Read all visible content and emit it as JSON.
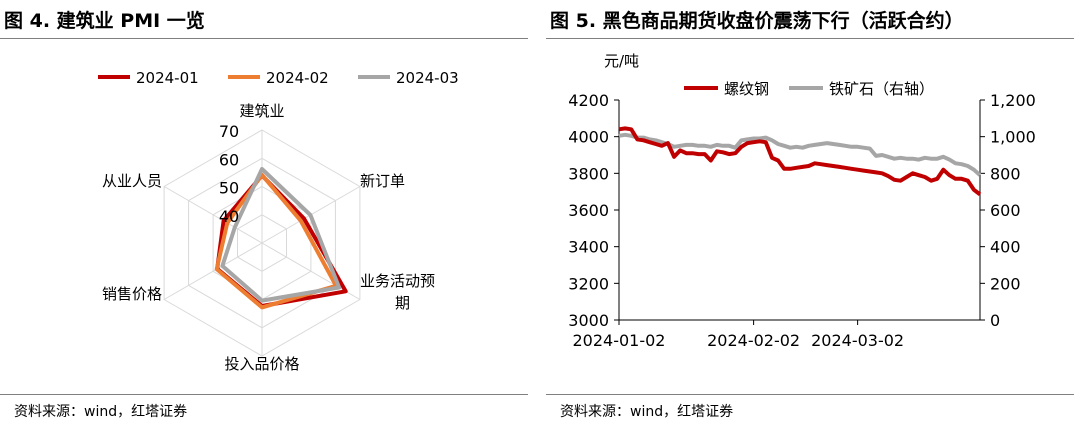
{
  "left": {
    "title": "图 4. 建筑业 PMI 一览",
    "source": "资料来源：wind，红塔证券"
  },
  "right": {
    "title": "图 5. 黑色商品期货收盘价震荡下行（活跃合约）",
    "source": "资料来源：wind，红塔证券"
  },
  "colors": {
    "red": "#c00000",
    "orange": "#ed7d31",
    "gray": "#a6a6a6",
    "grid": "#d9d9d9"
  },
  "chart_data": [
    {
      "type": "radar",
      "axes": [
        "建筑业",
        "新订单",
        "业务活动预期",
        "投入品价格",
        "销售价格",
        "从业人员"
      ],
      "axis_label_lines": [
        [
          "建筑业"
        ],
        [
          "新订单"
        ],
        [
          "业务活动预",
          "期"
        ],
        [
          "投入品价格"
        ],
        [
          "销售价格"
        ],
        [
          "从业人员"
        ]
      ],
      "rlim": [
        30,
        70
      ],
      "ticks": [
        40,
        50,
        60,
        70
      ],
      "legend": "top",
      "series": [
        {
          "name": "2024-01",
          "color": "#c00000",
          "values": [
            53.9,
            47.2,
            64.2,
            52.3,
            48.3,
            45.7
          ]
        },
        {
          "name": "2024-02",
          "color": "#ed7d31",
          "values": [
            54.1,
            45.8,
            60.3,
            52.8,
            48.5,
            44.2
          ]
        },
        {
          "name": "2024-03",
          "color": "#a6a6a6",
          "values": [
            56.2,
            49.8,
            61.5,
            50.4,
            46.2,
            41.1
          ]
        }
      ]
    },
    {
      "type": "line",
      "ylabel": "元/吨",
      "ylim": [
        3000,
        4200
      ],
      "y_ticks": [
        3000,
        3200,
        3400,
        3600,
        3800,
        4000,
        4200
      ],
      "y2lim": [
        0,
        1200
      ],
      "y2_ticks": [
        0,
        200,
        400,
        600,
        800,
        1000,
        1200
      ],
      "y2_tick_labels": [
        "0",
        "200",
        "400",
        "600",
        "800",
        "1,000",
        "1,200"
      ],
      "x_tick_labels": [
        "2024-01-02",
        "2024-02-02",
        "2024-03-02"
      ],
      "x_tick_positions": [
        0,
        22,
        39
      ],
      "x_count": 60,
      "legend": "top",
      "series": [
        {
          "name": "螺纹钢",
          "axis": "left",
          "color": "#c00000",
          "values": [
            4040,
            4045,
            4040,
            3985,
            3980,
            3970,
            3960,
            3950,
            3965,
            3890,
            3925,
            3910,
            3910,
            3905,
            3905,
            3870,
            3920,
            3915,
            3905,
            3910,
            3945,
            3965,
            3970,
            3975,
            3970,
            3885,
            3870,
            3825,
            3825,
            3830,
            3835,
            3840,
            3855,
            3850,
            3845,
            3840,
            3835,
            3830,
            3825,
            3820,
            3815,
            3810,
            3805,
            3800,
            3785,
            3765,
            3760,
            3780,
            3800,
            3790,
            3780,
            3760,
            3770,
            3820,
            3790,
            3770,
            3770,
            3760,
            3710,
            3685
          ]
        },
        {
          "name": "铁矿石（右轴）",
          "axis": "right",
          "color": "#a6a6a6",
          "values": [
            1005,
            1010,
            1005,
            995,
            995,
            985,
            980,
            970,
            960,
            945,
            950,
            955,
            955,
            950,
            950,
            945,
            955,
            950,
            950,
            940,
            980,
            985,
            990,
            990,
            995,
            980,
            960,
            950,
            940,
            945,
            940,
            950,
            955,
            960,
            965,
            960,
            955,
            950,
            945,
            945,
            940,
            935,
            895,
            900,
            890,
            880,
            885,
            880,
            880,
            875,
            885,
            880,
            880,
            890,
            875,
            855,
            850,
            840,
            820,
            790
          ]
        }
      ]
    }
  ]
}
